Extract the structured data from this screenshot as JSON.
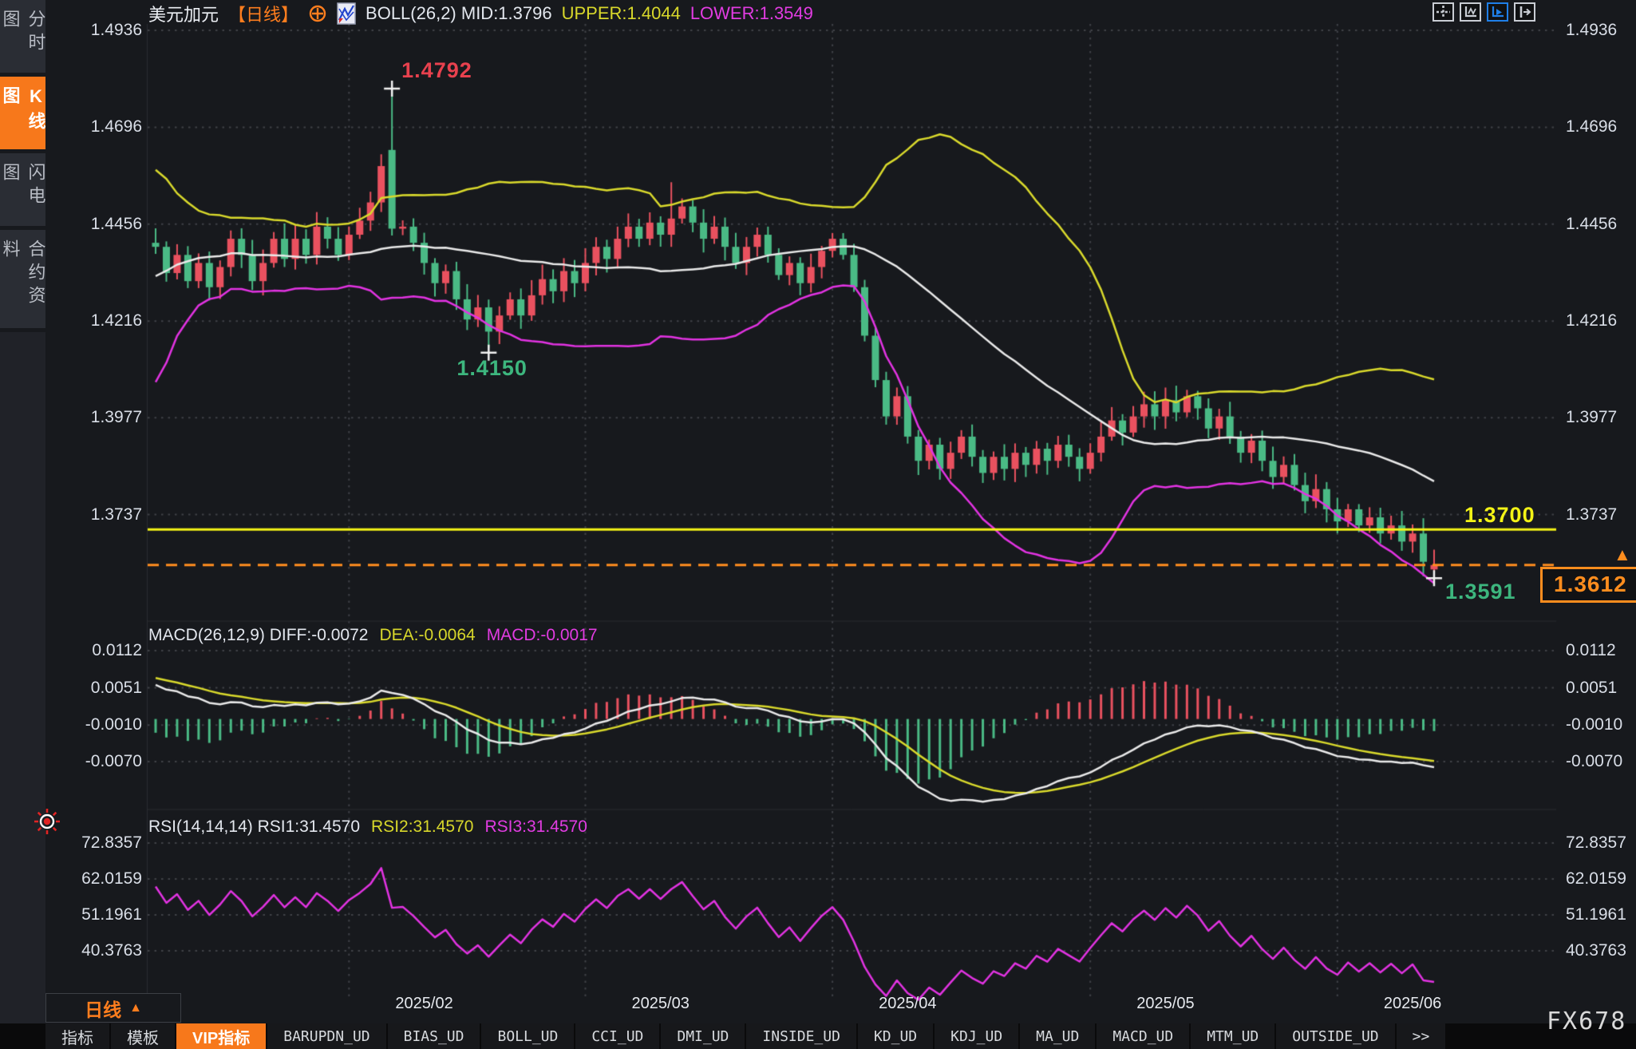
{
  "header": {
    "symbol": "美元加元",
    "period_tag": "【日线】",
    "boll_label": "BOLL(26,2) MID:1.3796",
    "upper_label": "UPPER:1.4044",
    "lower_label": "LOWER:1.3549"
  },
  "sidebar": {
    "items": [
      {
        "label": "分时图",
        "active": false
      },
      {
        "label": "K线图",
        "active": true
      },
      {
        "label": "闪电图",
        "active": false
      },
      {
        "label": "合约资料",
        "active": false
      }
    ]
  },
  "toolbar": {
    "icons": [
      {
        "name": "pan-crosshair-icon",
        "active": false
      },
      {
        "name": "axis-scale-icon",
        "active": false
      },
      {
        "name": "auto-scroll-icon",
        "active": true
      },
      {
        "name": "shift-right-icon",
        "active": false
      }
    ]
  },
  "timeframe_selector": {
    "label": "日线",
    "arrow": "▲"
  },
  "bottom_tabs": [
    {
      "label": "指标",
      "mono": false,
      "active": false
    },
    {
      "label": "模板",
      "mono": false,
      "active": false
    },
    {
      "label": "VIP指标",
      "mono": false,
      "active": true
    },
    {
      "label": "BARUPDN_UD",
      "mono": true,
      "active": false
    },
    {
      "label": "BIAS_UD",
      "mono": true,
      "active": false
    },
    {
      "label": "BOLL_UD",
      "mono": true,
      "active": false
    },
    {
      "label": "CCI_UD",
      "mono": true,
      "active": false
    },
    {
      "label": "DMI_UD",
      "mono": true,
      "active": false
    },
    {
      "label": "INSIDE_UD",
      "mono": true,
      "active": false
    },
    {
      "label": "KD_UD",
      "mono": true,
      "active": false
    },
    {
      "label": "KDJ_UD",
      "mono": true,
      "active": false
    },
    {
      "label": "MA_UD",
      "mono": true,
      "active": false
    },
    {
      "label": "MACD_UD",
      "mono": true,
      "active": false
    },
    {
      "label": "MTM_UD",
      "mono": true,
      "active": false
    },
    {
      "label": "OUTSIDE_UD",
      "mono": true,
      "active": false
    },
    {
      "label": ">>",
      "mono": true,
      "active": false
    }
  ],
  "watermark": "FX678",
  "colors": {
    "up_candle": "#e9515f",
    "down_candle": "#4aba85",
    "boll_upper": "#d9d92c",
    "boll_mid": "#e9e9e9",
    "boll_lower": "#e233e2",
    "support_line": "#f3f316",
    "last_price": "#ff8d1e",
    "red_label": "#e8414e",
    "green_label": "#3db67e",
    "grid": "#3f4147",
    "axis_text": "#d9dee7"
  },
  "chart_data": [
    {
      "type": "candlestick",
      "title": "USDCAD daily with BOLL(26,2)",
      "boll": {
        "period": 26,
        "mult": 2,
        "mid": 1.3796,
        "upper": 1.4044,
        "lower": 1.3549
      },
      "y_ticks": [
        {
          "v": 1.4936,
          "label": "1.4936"
        },
        {
          "v": 1.4696,
          "label": "1.4696"
        },
        {
          "v": 1.4456,
          "label": "1.4456"
        },
        {
          "v": 1.4216,
          "label": "1.4216"
        },
        {
          "v": 1.3977,
          "label": "1.3977"
        },
        {
          "v": 1.3737,
          "label": "1.3737"
        }
      ],
      "y_range": [
        1.3479,
        1.4952
      ],
      "x_ticks": [
        {
          "label": "2025/02",
          "index": 25
        },
        {
          "label": "2025/03",
          "index": 47
        },
        {
          "label": "2025/04",
          "index": 70
        },
        {
          "label": "2025/05",
          "index": 94
        },
        {
          "label": "2025/06",
          "index": 117
        }
      ],
      "month_start_gridlines": [
        18,
        40,
        63,
        87,
        110
      ],
      "lead_in_closes": [
        1.405,
        1.4,
        1.398,
        1.41,
        1.415,
        1.422,
        1.43,
        1.425,
        1.438,
        1.442,
        1.435,
        1.445,
        1.44,
        1.448,
        1.443,
        1.439,
        1.444,
        1.436,
        1.431,
        1.438,
        1.443,
        1.439,
        1.434,
        1.44,
        1.436,
        1.441
      ],
      "closes": [
        1.44,
        1.4335,
        1.438,
        1.4315,
        1.436,
        1.43,
        1.435,
        1.442,
        1.438,
        1.4315,
        1.436,
        1.442,
        1.437,
        1.442,
        1.438,
        1.445,
        1.442,
        1.438,
        1.443,
        1.4465,
        1.451,
        1.46,
        1.4445,
        1.445,
        1.441,
        1.436,
        1.431,
        1.434,
        1.427,
        1.422,
        1.425,
        1.419,
        1.423,
        1.427,
        1.423,
        1.428,
        1.432,
        1.429,
        1.434,
        1.431,
        1.436,
        1.44,
        1.437,
        1.442,
        1.445,
        1.442,
        1.446,
        1.443,
        1.447,
        1.45,
        1.446,
        1.442,
        1.445,
        1.44,
        1.436,
        1.44,
        1.443,
        1.438,
        1.433,
        1.436,
        1.431,
        1.435,
        1.439,
        1.442,
        1.438,
        1.43,
        1.418,
        1.407,
        1.398,
        1.403,
        1.393,
        1.387,
        1.391,
        1.385,
        1.389,
        1.393,
        1.388,
        1.384,
        1.388,
        1.385,
        1.389,
        1.386,
        1.39,
        1.387,
        1.391,
        1.388,
        1.385,
        1.389,
        1.393,
        1.397,
        1.394,
        1.398,
        1.401,
        1.398,
        1.402,
        1.399,
        1.403,
        1.4,
        1.395,
        1.398,
        1.393,
        1.389,
        1.392,
        1.387,
        1.383,
        1.386,
        1.381,
        1.377,
        1.38,
        1.375,
        1.372,
        1.375,
        1.371,
        1.373,
        1.369,
        1.371,
        1.367,
        1.369,
        1.362,
        1.3612
      ],
      "overrides": {
        "22": {
          "open": 1.464,
          "high": 1.4792,
          "low": 1.4428
        },
        "31": {
          "low": 1.415
        },
        "48": {
          "high": 1.456
        },
        "119": {
          "open": 1.3601,
          "high": 1.365,
          "low": 1.3591
        }
      },
      "hlines": [
        {
          "price": 1.37,
          "label": "1.3700",
          "style": "solid",
          "color_key": "support_line"
        },
        {
          "price": 1.3612,
          "label": "1.3612",
          "style": "dashed",
          "color_key": "last_price"
        }
      ],
      "annotations": [
        {
          "index": 22,
          "price": 1.4792,
          "text": "1.4792",
          "color_key": "red_label",
          "marker": "high"
        },
        {
          "index": 31,
          "price": 1.415,
          "text": "1.4150",
          "color_key": "green_label",
          "marker": "low"
        },
        {
          "index": 119,
          "price": 1.3591,
          "text": "1.3591",
          "color_key": "green_label",
          "marker": "low"
        }
      ],
      "last_price_box": {
        "text": "1.3612",
        "arrow": "▲"
      }
    },
    {
      "type": "macd-histogram",
      "params": [
        26,
        12,
        9
      ],
      "header": {
        "main": "MACD(26,12,9) DIFF:-0.0072",
        "dea": "DEA:-0.0064",
        "macd": "MACD:-0.0017"
      },
      "current": {
        "diff": -0.0072,
        "dea": -0.0064,
        "macd": -0.0017
      },
      "y_ticks": [
        {
          "v": 0.0112,
          "label": "0.0112"
        },
        {
          "v": 0.0051,
          "label": "0.0051"
        },
        {
          "v": -0.001,
          "label": "-0.0010"
        },
        {
          "v": -0.007,
          "label": "-0.0070"
        }
      ],
      "y_range": [
        -0.01405,
        0.01316
      ],
      "legend_position": "top-left"
    },
    {
      "type": "line",
      "name": "RSI",
      "params": [
        14,
        14,
        14
      ],
      "header": {
        "main": "RSI(14,14,14) RSI1:31.4570",
        "rsi2": "RSI2:31.4570",
        "rsi3": "RSI3:31.4570"
      },
      "current": {
        "rsi1": 31.457,
        "rsi2": 31.457,
        "rsi3": 31.457
      },
      "y_ticks": [
        {
          "v": 72.8357,
          "label": "72.8357"
        },
        {
          "v": 62.0159,
          "label": "62.0159"
        },
        {
          "v": 51.1961,
          "label": "51.1961"
        },
        {
          "v": 40.3763,
          "label": "40.3763"
        }
      ],
      "y_range": [
        26.7,
        76.7
      ],
      "legend_position": "top-left"
    }
  ]
}
